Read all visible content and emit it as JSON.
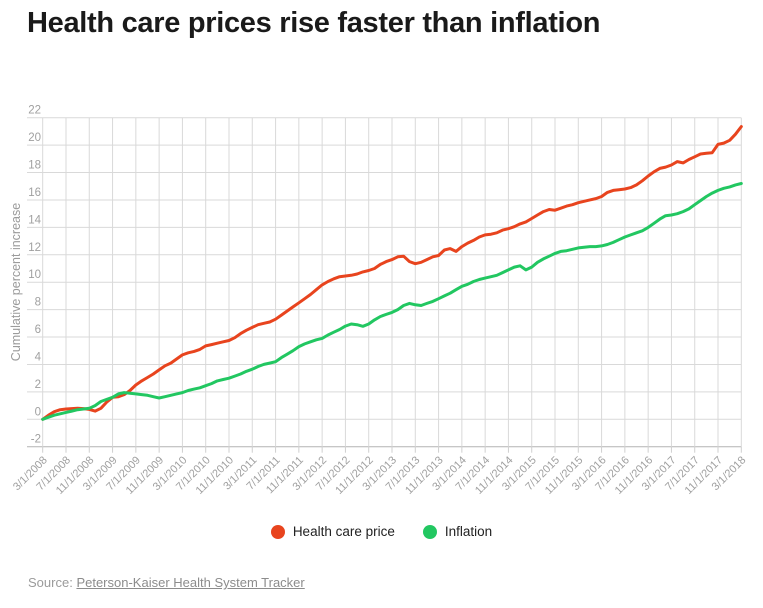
{
  "title": "Health care prices rise faster than inflation",
  "legend": [
    {
      "label": "Health care price",
      "color": "#e8441e"
    },
    {
      "label": "Inflation",
      "color": "#22c761"
    }
  ],
  "source": {
    "prefix": "Source:",
    "link_text": "Peterson-Kaiser Health System Tracker"
  },
  "chart_data": {
    "type": "line",
    "title": "Health care prices rise faster than inflation",
    "xlabel": "",
    "ylabel": "Cumulative percent increase",
    "ylim": [
      -2,
      22
    ],
    "y_ticks": [
      -2,
      0,
      2,
      4,
      6,
      8,
      10,
      12,
      14,
      16,
      18,
      20,
      22
    ],
    "grid": true,
    "legend_position": "bottom",
    "x_tick_step_months": 4,
    "x_tick_labels": [
      "3/1/2008",
      "7/1/2008",
      "11/1/2008",
      "3/1/2009",
      "7/1/2009",
      "11/1/2009",
      "3/1/2010",
      "7/1/2010",
      "11/1/2010",
      "3/1/2011",
      "7/1/2011",
      "11/1/2011",
      "3/1/2012",
      "7/1/2012",
      "11/1/2012",
      "3/1/2013",
      "7/1/2013",
      "11/1/2013",
      "3/1/2014",
      "7/1/2014",
      "11/1/2014",
      "3/1/2015",
      "7/1/2015",
      "11/1/2015",
      "3/1/2016",
      "7/1/2016",
      "11/1/2016",
      "3/1/2017",
      "7/1/2017",
      "11/1/2017",
      "3/1/2018"
    ],
    "series": [
      {
        "name": "Health care price",
        "color": "#e8441e",
        "values": [
          0,
          0.3,
          0.55,
          0.7,
          0.75,
          0.78,
          0.8,
          0.78,
          0.72,
          0.6,
          0.8,
          1.25,
          1.6,
          1.65,
          1.8,
          2.1,
          2.5,
          2.8,
          3.05,
          3.3,
          3.6,
          3.9,
          4.1,
          4.4,
          4.7,
          4.85,
          4.95,
          5.1,
          5.35,
          5.45,
          5.55,
          5.65,
          5.75,
          5.95,
          6.25,
          6.5,
          6.7,
          6.9,
          7.0,
          7.1,
          7.3,
          7.6,
          7.9,
          8.2,
          8.5,
          8.8,
          9.1,
          9.45,
          9.8,
          10.05,
          10.25,
          10.4,
          10.45,
          10.5,
          10.6,
          10.75,
          10.85,
          11.0,
          11.3,
          11.5,
          11.65,
          11.85,
          11.9,
          11.5,
          11.35,
          11.45,
          11.65,
          11.85,
          11.95,
          12.35,
          12.45,
          12.25,
          12.6,
          12.85,
          13.05,
          13.3,
          13.45,
          13.5,
          13.6,
          13.8,
          13.9,
          14.05,
          14.25,
          14.4,
          14.65,
          14.9,
          15.15,
          15.3,
          15.25,
          15.4,
          15.55,
          15.65,
          15.8,
          15.9,
          16.0,
          16.1,
          16.25,
          16.55,
          16.7,
          16.75,
          16.8,
          16.9,
          17.1,
          17.4,
          17.75,
          18.05,
          18.3,
          18.4,
          18.55,
          18.8,
          18.7,
          18.95,
          19.15,
          19.35,
          19.4,
          19.45,
          20.05,
          20.15,
          20.35,
          20.8,
          21.35
        ]
      },
      {
        "name": "Inflation",
        "color": "#22c761",
        "values": [
          0,
          0.15,
          0.3,
          0.4,
          0.5,
          0.6,
          0.7,
          0.75,
          0.8,
          1.0,
          1.3,
          1.45,
          1.6,
          1.85,
          1.95,
          1.9,
          1.85,
          1.8,
          1.75,
          1.65,
          1.55,
          1.65,
          1.75,
          1.85,
          1.95,
          2.1,
          2.2,
          2.3,
          2.45,
          2.6,
          2.8,
          2.9,
          3.0,
          3.15,
          3.3,
          3.5,
          3.65,
          3.85,
          4.0,
          4.1,
          4.2,
          4.5,
          4.75,
          5.0,
          5.3,
          5.5,
          5.65,
          5.8,
          5.9,
          6.15,
          6.35,
          6.55,
          6.8,
          6.95,
          6.9,
          6.78,
          6.95,
          7.25,
          7.5,
          7.65,
          7.8,
          8.0,
          8.3,
          8.45,
          8.35,
          8.3,
          8.45,
          8.6,
          8.8,
          9.0,
          9.2,
          9.45,
          9.7,
          9.85,
          10.05,
          10.2,
          10.3,
          10.4,
          10.5,
          10.7,
          10.9,
          11.1,
          11.2,
          10.9,
          11.1,
          11.45,
          11.7,
          11.9,
          12.1,
          12.25,
          12.3,
          12.4,
          12.5,
          12.55,
          12.6,
          12.6,
          12.65,
          12.75,
          12.9,
          13.1,
          13.3,
          13.45,
          13.6,
          13.75,
          14.0,
          14.3,
          14.6,
          14.85,
          14.9,
          15.0,
          15.15,
          15.35,
          15.65,
          15.95,
          16.25,
          16.5,
          16.7,
          16.85,
          16.95,
          17.1,
          17.2
        ]
      }
    ]
  }
}
